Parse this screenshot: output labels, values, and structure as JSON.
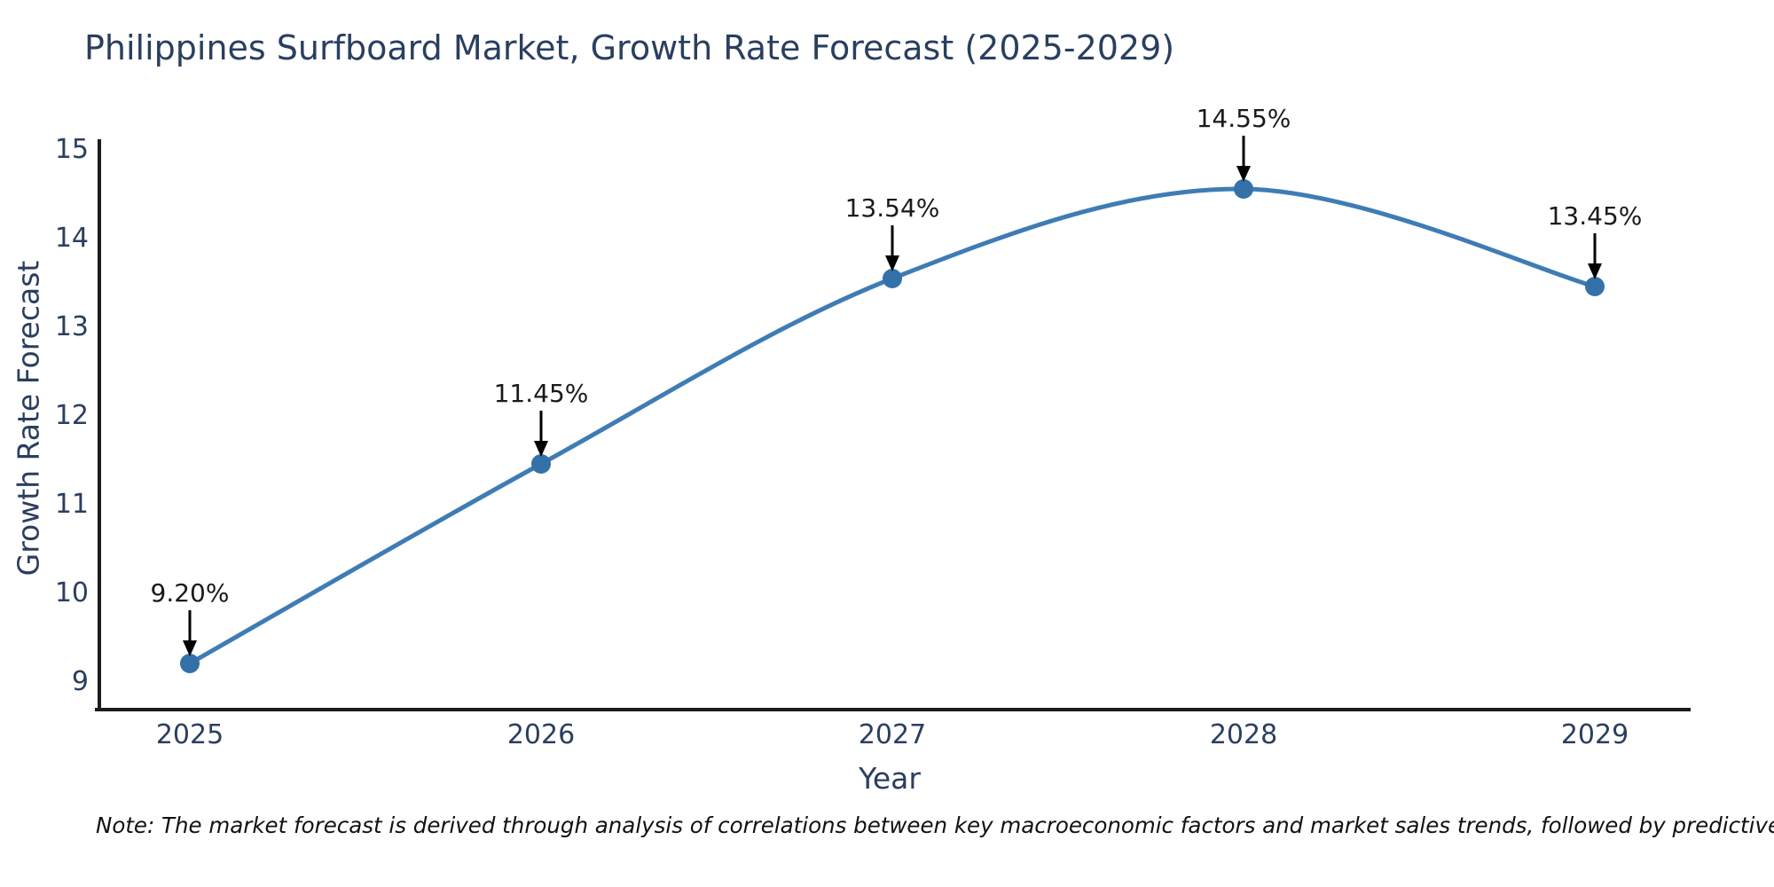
{
  "header": {
    "title": "Philippines Surfboard Market, Growth Rate Forecast (2025-2029)"
  },
  "footnote": "Note: The market forecast is derived through analysis of correlations between key macroeconomic factors and market sales trends, followed by predictive modeling to project future sales.",
  "chart_data": {
    "type": "line",
    "title": "Philippines Surfboard Market, Growth Rate Forecast (2025-2029)",
    "xlabel": "Year",
    "ylabel": "Growth Rate Forecast",
    "categories": [
      "2025",
      "2026",
      "2027",
      "2028",
      "2029"
    ],
    "values": [
      9.2,
      11.45,
      13.54,
      14.55,
      13.45
    ],
    "point_labels": [
      "9.20%",
      "11.45%",
      "13.54%",
      "14.55%",
      "13.45%"
    ],
    "yticks": [
      9,
      10,
      11,
      12,
      13,
      14,
      15
    ],
    "ylim": [
      8.68,
      15.1
    ],
    "grid": false,
    "legend": false,
    "line_shape": "spline",
    "annotations_have_arrows": true
  },
  "colors": {
    "line": "#3f7cb5",
    "marker": "#3471a8",
    "axis": "#1c1c1c",
    "tick_label": "#2a3f5f",
    "annotation_text": "#1a1a1a",
    "arrow": "#000000"
  }
}
